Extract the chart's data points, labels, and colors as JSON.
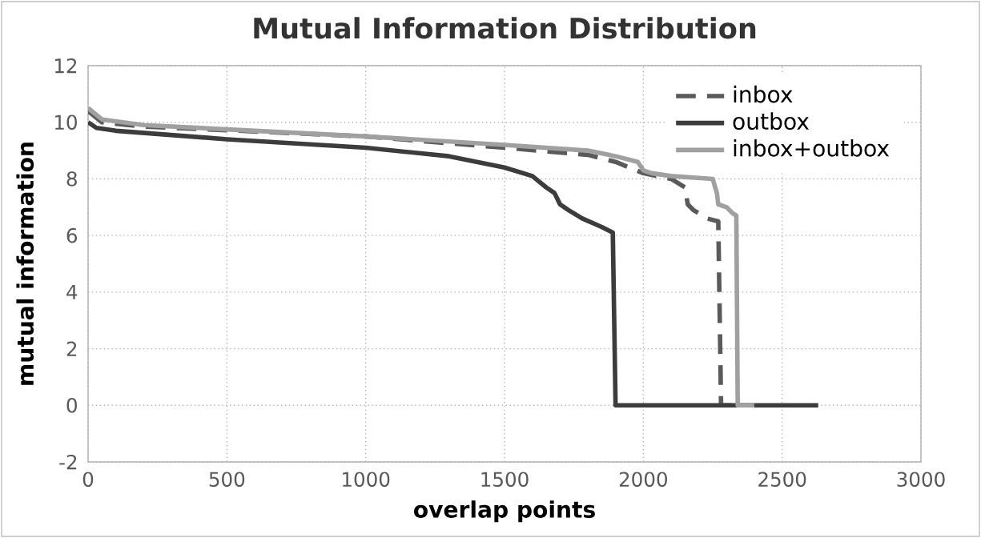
{
  "chart_data": {
    "type": "line",
    "title": "Mutual Information Distribution",
    "xlabel": "overlap points",
    "ylabel": "mutual information",
    "xlim": [
      0,
      3000
    ],
    "xticks": [
      0,
      500,
      1000,
      1500,
      2000,
      2500,
      3000
    ],
    "ylim": [
      -2,
      12
    ],
    "yticks": [
      -2,
      0,
      2,
      4,
      6,
      8,
      10,
      12
    ],
    "grid": true,
    "legend": "top right",
    "series": [
      {
        "name": "inbox",
        "color": "#5a5a5a",
        "line_style": "dashed",
        "x": [
          0,
          50,
          200,
          1000,
          1500,
          1800,
          1900,
          2000,
          2100,
          2150,
          2160,
          2180,
          2230,
          2270,
          2280,
          2340
        ],
        "values": [
          10.4,
          10.0,
          9.85,
          9.5,
          9.1,
          8.85,
          8.6,
          8.2,
          8.0,
          7.7,
          7.1,
          6.9,
          6.6,
          6.5,
          0,
          0
        ]
      },
      {
        "name": "outbox",
        "color": "#3c3c3c",
        "line_style": "solid",
        "x": [
          0,
          30,
          100,
          500,
          1000,
          1300,
          1500,
          1600,
          1650,
          1680,
          1700,
          1730,
          1780,
          1850,
          1890,
          1900,
          2630
        ],
        "values": [
          10.0,
          9.8,
          9.7,
          9.4,
          9.1,
          8.8,
          8.4,
          8.1,
          7.7,
          7.5,
          7.1,
          6.9,
          6.6,
          6.3,
          6.1,
          0,
          0
        ]
      },
      {
        "name": "inbox+outbox",
        "color": "#a0a0a0",
        "line_style": "solid",
        "x": [
          0,
          50,
          200,
          1000,
          1500,
          1800,
          1900,
          1980,
          2000,
          2030,
          2100,
          2250,
          2265,
          2270,
          2300,
          2320,
          2335,
          2340,
          2400
        ],
        "values": [
          10.5,
          10.1,
          9.9,
          9.5,
          9.2,
          9.0,
          8.8,
          8.6,
          8.3,
          8.2,
          8.1,
          8.0,
          7.5,
          7.1,
          7.0,
          6.8,
          6.7,
          0,
          0
        ]
      }
    ]
  }
}
